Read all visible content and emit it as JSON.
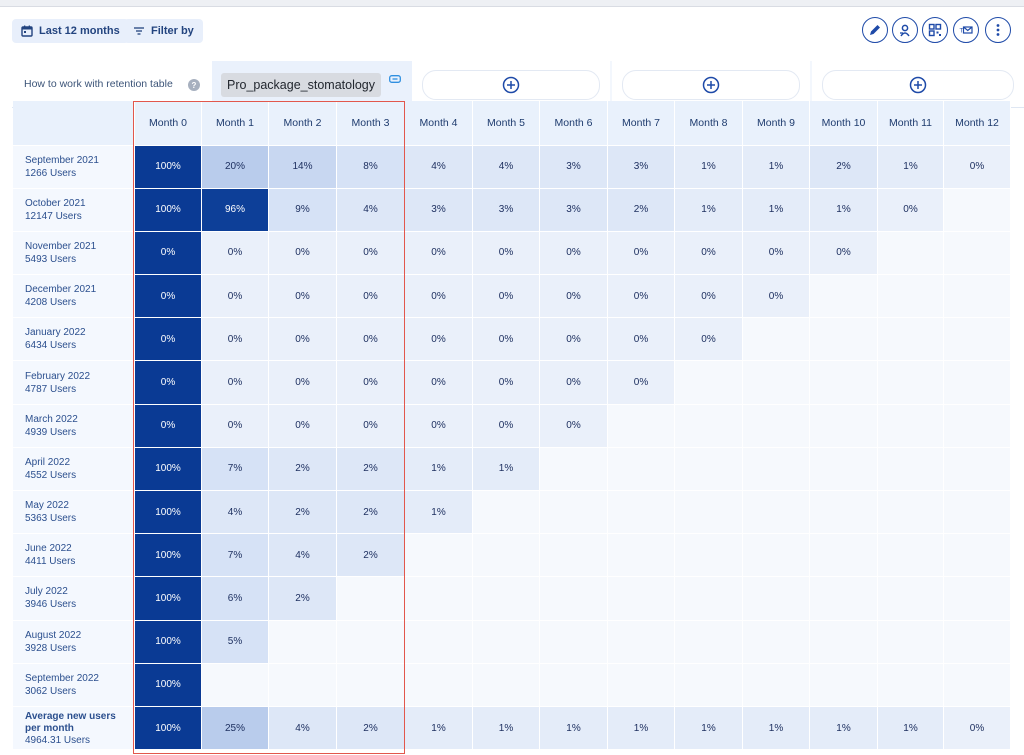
{
  "toolbar": {
    "period_label": "Last 12 months",
    "filter_label": "Filter by",
    "actions": [
      "edit-icon",
      "user-pin-icon",
      "qr-grid-icon",
      "mail-icon",
      "more-vertical-icon"
    ]
  },
  "tabs": {
    "help_label": "How to work with retention table",
    "active_label": "Pro_package_stomatology"
  },
  "colors": {
    "accent": "#1e4aa8",
    "cell_dark": "#0a3a94",
    "highlight_border": "#e2574c"
  },
  "table": {
    "columns": [
      "Month 0",
      "Month 1",
      "Month 2",
      "Month 3",
      "Month 4",
      "Month 5",
      "Month 6",
      "Month 7",
      "Month 8",
      "Month 9",
      "Month 10",
      "Month 11",
      "Month 12"
    ],
    "rows": [
      {
        "label": "September 2021",
        "users": "1266 Users",
        "values": [
          "100%",
          "20%",
          "14%",
          "8%",
          "4%",
          "4%",
          "3%",
          "3%",
          "1%",
          "1%",
          "2%",
          "1%",
          "0%"
        ]
      },
      {
        "label": "October 2021",
        "users": "12147 Users",
        "values": [
          "100%",
          "96%",
          "9%",
          "4%",
          "3%",
          "3%",
          "3%",
          "2%",
          "1%",
          "1%",
          "1%",
          "0%"
        ]
      },
      {
        "label": "November 2021",
        "users": "5493 Users",
        "values": [
          "0%",
          "0%",
          "0%",
          "0%",
          "0%",
          "0%",
          "0%",
          "0%",
          "0%",
          "0%",
          "0%"
        ]
      },
      {
        "label": "December 2021",
        "users": "4208 Users",
        "values": [
          "0%",
          "0%",
          "0%",
          "0%",
          "0%",
          "0%",
          "0%",
          "0%",
          "0%",
          "0%"
        ]
      },
      {
        "label": "January 2022",
        "users": "6434 Users",
        "values": [
          "0%",
          "0%",
          "0%",
          "0%",
          "0%",
          "0%",
          "0%",
          "0%",
          "0%"
        ]
      },
      {
        "label": "February 2022",
        "users": "4787 Users",
        "values": [
          "0%",
          "0%",
          "0%",
          "0%",
          "0%",
          "0%",
          "0%",
          "0%"
        ]
      },
      {
        "label": "March 2022",
        "users": "4939 Users",
        "values": [
          "0%",
          "0%",
          "0%",
          "0%",
          "0%",
          "0%",
          "0%"
        ]
      },
      {
        "label": "April 2022",
        "users": "4552 Users",
        "values": [
          "100%",
          "7%",
          "2%",
          "2%",
          "1%",
          "1%"
        ]
      },
      {
        "label": "May 2022",
        "users": "5363 Users",
        "values": [
          "100%",
          "4%",
          "2%",
          "2%",
          "1%"
        ]
      },
      {
        "label": "June 2022",
        "users": "4411 Users",
        "values": [
          "100%",
          "7%",
          "4%",
          "2%"
        ]
      },
      {
        "label": "July 2022",
        "users": "3946 Users",
        "values": [
          "100%",
          "6%",
          "2%"
        ]
      },
      {
        "label": "August 2022",
        "users": "3928 Users",
        "values": [
          "100%",
          "5%"
        ]
      },
      {
        "label": "September 2022",
        "users": "3062 Users",
        "values": [
          "100%"
        ]
      }
    ],
    "average": {
      "label_line1": "Average new users",
      "label_line2": "per month",
      "users": "4964.31 Users",
      "values": [
        "100%",
        "25%",
        "4%",
        "2%",
        "1%",
        "1%",
        "1%",
        "1%",
        "1%",
        "1%",
        "1%",
        "1%",
        "0%"
      ]
    }
  }
}
